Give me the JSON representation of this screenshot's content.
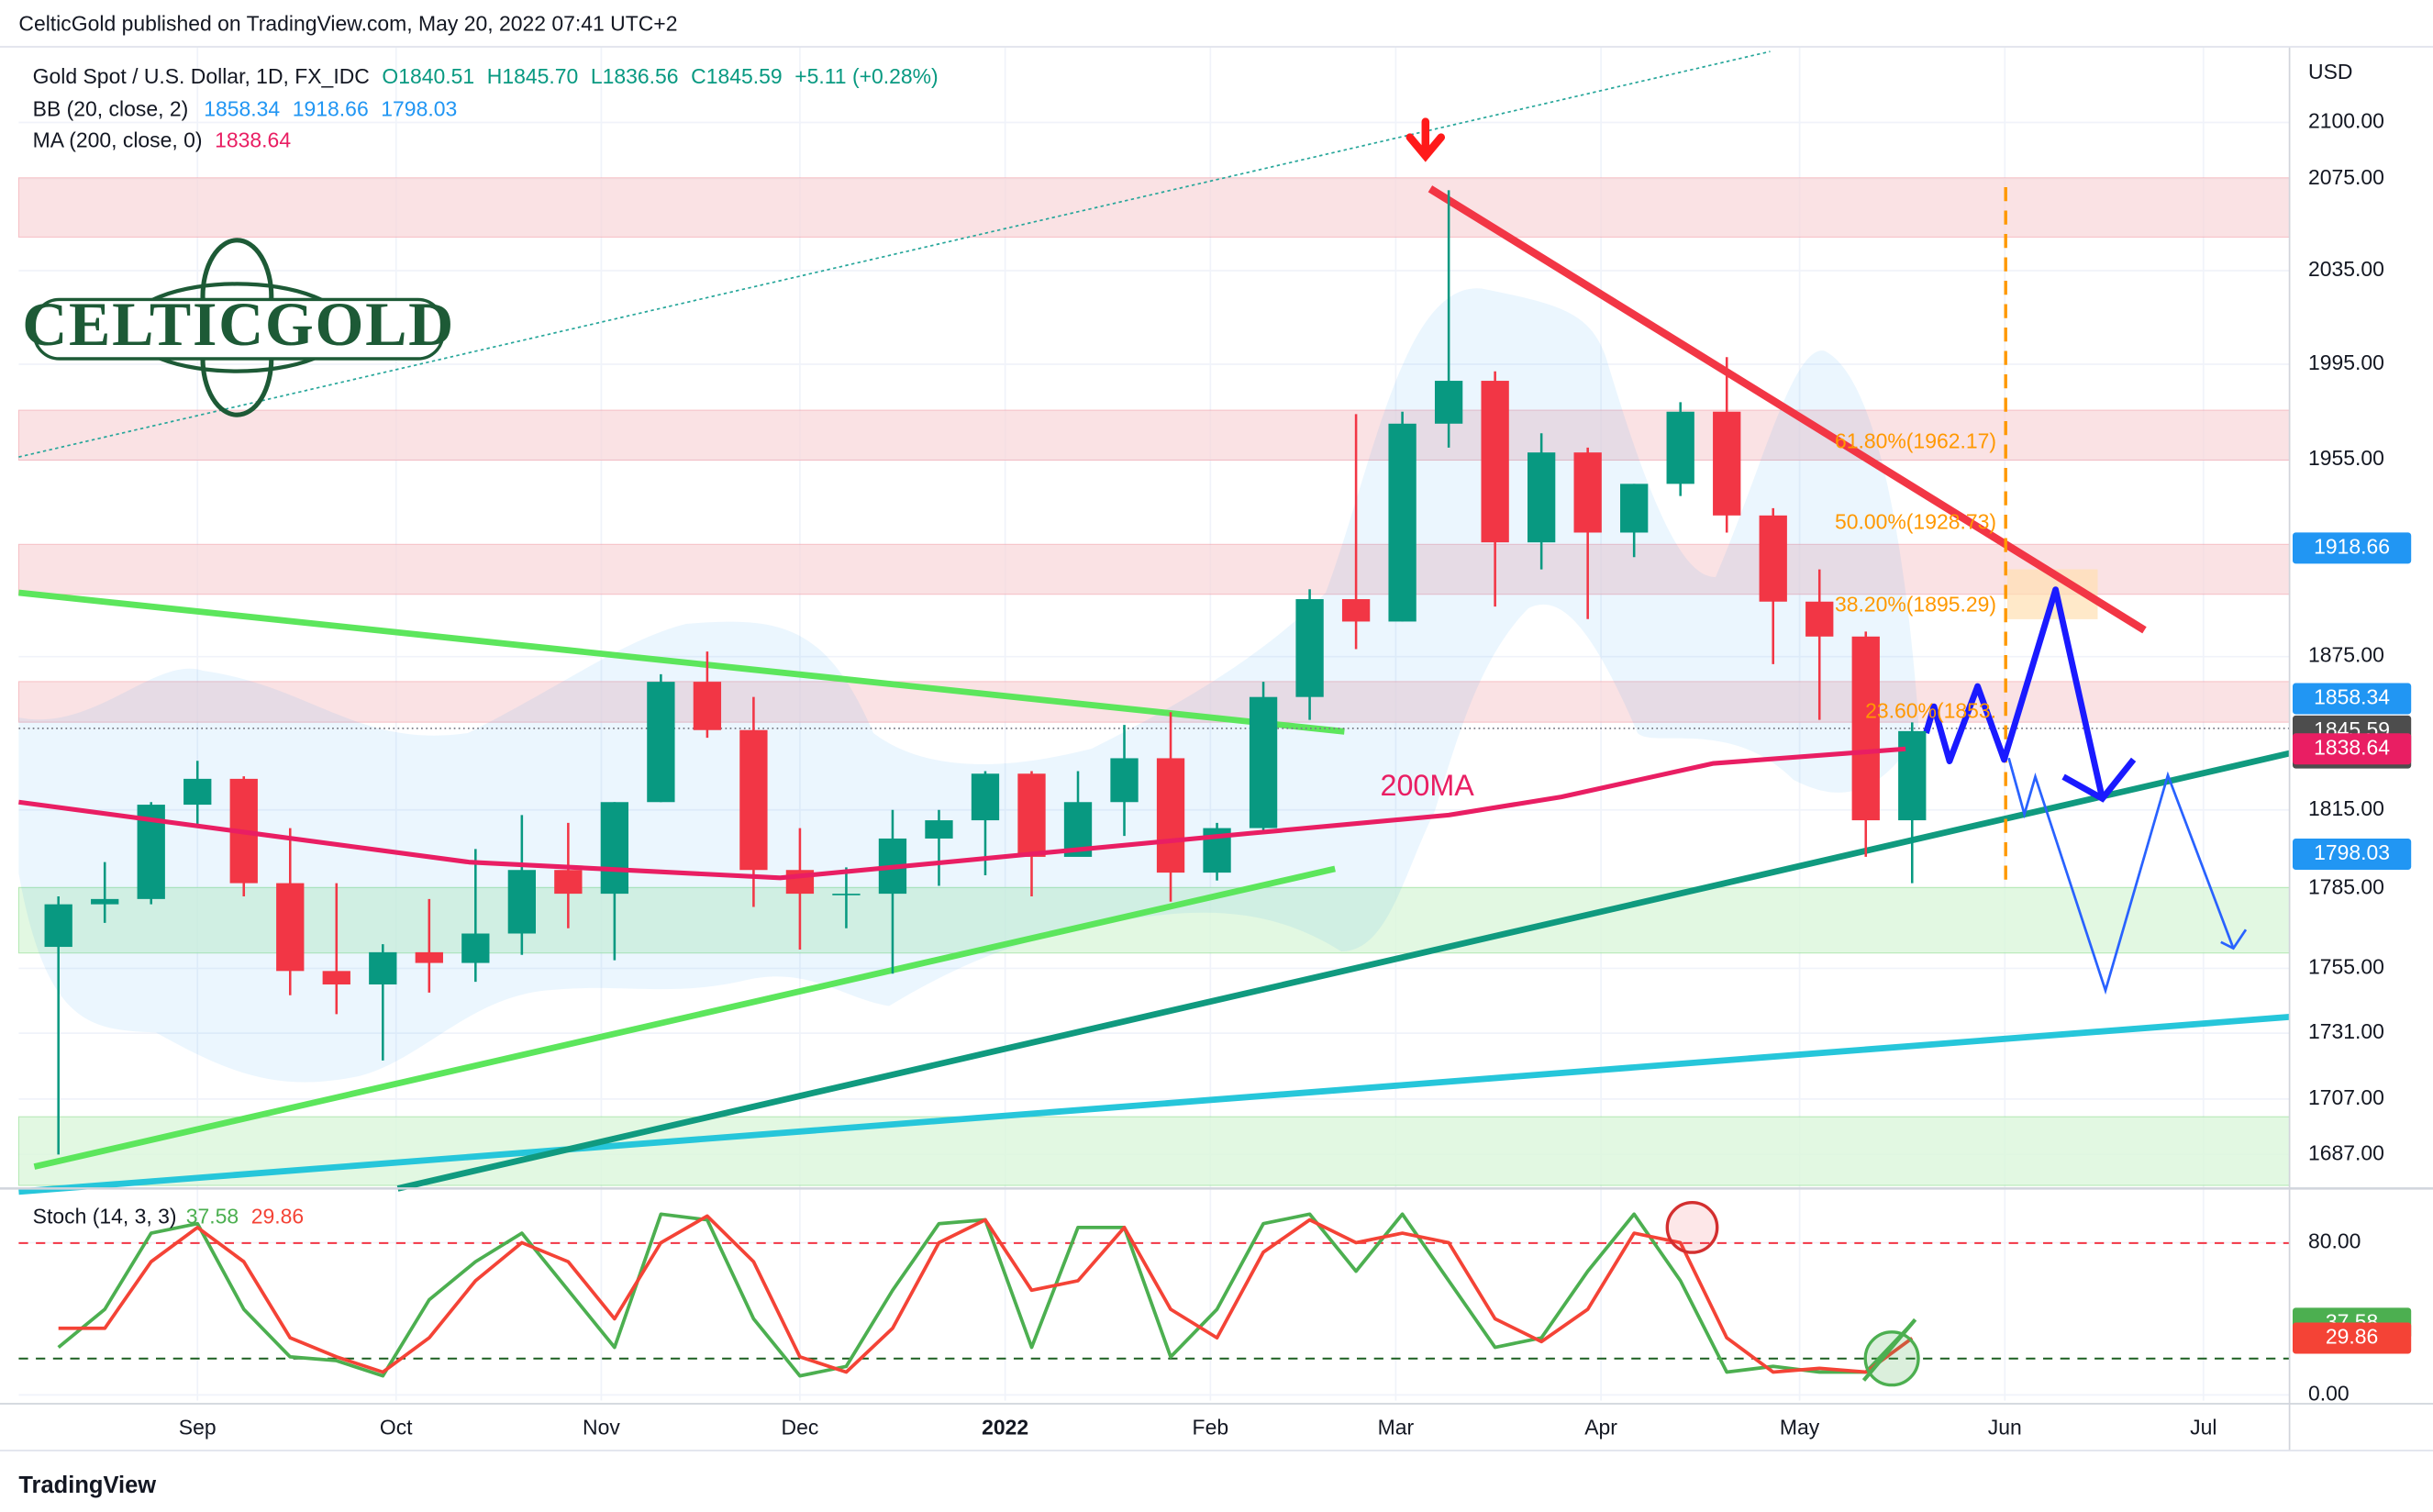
{
  "header": {
    "publisher": "CelticGold published on TradingView.com, May 20, 2022 07:41 UTC+2",
    "footer": "TradingView",
    "logo": "CELTICGOLD"
  },
  "chart_data": [
    {
      "type": "candlestick",
      "title": "Gold Spot / U.S. Dollar, 1D, FX_IDC",
      "legend_values": [
        "O1840.51",
        "H1845.70",
        "L1836.56",
        "C1845.59",
        "+5.11 (+0.28%)"
      ],
      "indicators": [
        {
          "label": "BB (20, close, 2)",
          "values": [
            "1858.34",
            "1918.66",
            "1798.03"
          ],
          "color": "#2196f3"
        },
        {
          "label": "MA (200, close, 0)",
          "values": [
            "1838.64"
          ],
          "color": "#e91e63"
        }
      ],
      "y_label": "USD",
      "log_scale": true,
      "grid": true,
      "up_color": "#089981",
      "down_color": "#f23645",
      "x": [
        -21,
        -14,
        -7,
        0,
        7,
        14,
        21,
        28,
        35,
        42,
        49,
        56,
        63,
        70,
        77,
        84,
        91,
        98,
        105,
        112,
        119,
        126,
        133,
        140,
        147,
        154,
        161,
        168,
        175,
        182,
        189,
        196,
        203,
        210,
        217,
        224,
        231,
        238,
        245,
        252,
        259
      ],
      "open": [
        1763,
        1779,
        1781,
        1817,
        1827,
        1787,
        1754,
        1749,
        1761,
        1757,
        1768,
        1792,
        1783,
        1818,
        1865,
        1846,
        1792,
        1783,
        1783,
        1804,
        1811,
        1829,
        1797,
        1818,
        1835,
        1791,
        1808,
        1859,
        1898,
        1889,
        1970,
        1988,
        1921,
        1958,
        1925,
        1945,
        1975,
        1932,
        1897,
        1883,
        1811
      ],
      "high": [
        1782,
        1795,
        1818,
        1834,
        1828,
        1808,
        1787,
        1764,
        1781,
        1800,
        1813,
        1810,
        1818,
        1868,
        1877,
        1859,
        1808,
        1793,
        1815,
        1815,
        1830,
        1830,
        1830,
        1848,
        1853,
        1810,
        1865,
        1902,
        1974,
        1975,
        2070,
        1992,
        1966,
        1960,
        1945,
        1979,
        1998,
        1935,
        1910,
        1885,
        1849
      ],
      "low": [
        1687,
        1772,
        1779,
        1809,
        1782,
        1745,
        1738,
        1721,
        1746,
        1750,
        1760,
        1770,
        1758,
        1818,
        1843,
        1778,
        1762,
        1770,
        1753,
        1786,
        1790,
        1782,
        1800,
        1805,
        1780,
        1788,
        1807,
        1850,
        1878,
        1889,
        1960,
        1895,
        1910,
        1890,
        1915,
        1940,
        1925,
        1872,
        1850,
        1797,
        1787
      ],
      "close": [
        1779,
        1781,
        1817,
        1827,
        1787,
        1754,
        1749,
        1761,
        1757,
        1768,
        1792,
        1783,
        1818,
        1865,
        1846,
        1792,
        1783,
        1783,
        1804,
        1811,
        1829,
        1797,
        1818,
        1835,
        1791,
        1808,
        1859,
        1898,
        1889,
        1970,
        1988,
        1921,
        1958,
        1925,
        1945,
        1975,
        1932,
        1897,
        1883,
        1811,
        1845.59
      ],
      "series": [
        {
          "name": "200MA",
          "color": "#e91e63",
          "x": [
            -27,
            41,
            88,
            159,
            189,
            206,
            229,
            258
          ],
          "values": [
            1818,
            1795,
            1789,
            1806,
            1813,
            1820,
            1833,
            1838.64
          ]
        }
      ],
      "xlim": [
        -27,
        316
      ],
      "xticks": [
        {
          "value": 0,
          "label": "Sep"
        },
        {
          "value": 30,
          "label": "Oct"
        },
        {
          "value": 61,
          "label": "Nov"
        },
        {
          "value": 91,
          "label": "Dec"
        },
        {
          "value": 122,
          "label": "2022"
        },
        {
          "value": 153,
          "label": "Feb"
        },
        {
          "value": 181,
          "label": "Mar"
        },
        {
          "value": 212,
          "label": "Apr"
        },
        {
          "value": 242,
          "label": "May"
        },
        {
          "value": 273,
          "label": "Jun"
        },
        {
          "value": 303,
          "label": "Jul"
        }
      ],
      "ylim": [
        1676,
        2134
      ],
      "yticks": [
        {
          "value": 2100,
          "label": "2100.00"
        },
        {
          "value": 2075,
          "label": "2075.00"
        },
        {
          "value": 2035,
          "label": "2035.00"
        },
        {
          "value": 1995,
          "label": "1995.00"
        },
        {
          "value": 1955,
          "label": "1955.00"
        },
        {
          "value": 1875,
          "label": "1875.00"
        },
        {
          "value": 1815,
          "label": "1815.00"
        },
        {
          "value": 1785,
          "label": "1785.00"
        },
        {
          "value": 1755,
          "label": "1755.00"
        },
        {
          "value": 1731,
          "label": "1731.00"
        },
        {
          "value": 1707,
          "label": "1707.00"
        },
        {
          "value": 1687,
          "label": "1687.00"
        }
      ],
      "price_labels": [
        {
          "value": 1918.66,
          "label": "1918.66",
          "color": "#2196f3"
        },
        {
          "value": 1858.34,
          "label": "1858.34",
          "color": "#2196f3"
        },
        {
          "value": 1845.59,
          "label": "1845.59",
          "sublabel": "16:18:10",
          "color": "#4d4d4d"
        },
        {
          "value": 1838.64,
          "label": "1838.64",
          "color": "#e91e63"
        },
        {
          "value": 1798.03,
          "label": "1798.03",
          "color": "#2196f3"
        }
      ],
      "fib_levels": [
        {
          "value": 1962.17,
          "label": "61.80%(1962.17)"
        },
        {
          "value": 1928.73,
          "label": "50.00%(1928.73)"
        },
        {
          "value": 1895.29,
          "label": "38.20%(1895.29)"
        },
        {
          "value": 1853,
          "label": "23.60%(1853."
        }
      ],
      "fib_color": "#ff9800"
    },
    {
      "type": "line",
      "title": "Stoch (14, 3, 3)",
      "legend_values": [
        "37.58",
        "29.86"
      ],
      "x": [
        -21,
        -14,
        -7,
        0,
        7,
        14,
        21,
        28,
        35,
        42,
        49,
        56,
        63,
        70,
        77,
        84,
        91,
        98,
        105,
        112,
        119,
        126,
        133,
        140,
        147,
        154,
        161,
        168,
        175,
        182,
        189,
        196,
        203,
        210,
        217,
        224,
        231,
        238,
        245,
        252,
        259
      ],
      "series": [
        {
          "color": "#4caf50",
          "values": [
            25,
            45,
            85,
            90,
            45,
            20,
            18,
            10,
            50,
            70,
            85,
            55,
            25,
            95,
            92,
            40,
            10,
            15,
            55,
            90,
            92,
            25,
            88,
            88,
            20,
            45,
            90,
            95,
            65,
            95,
            60,
            25,
            30,
            65,
            95,
            60,
            12,
            15,
            12,
            12,
            37.58
          ]
        },
        {
          "color": "#f44336",
          "values": [
            35,
            35,
            70,
            88,
            70,
            30,
            20,
            12,
            30,
            60,
            80,
            70,
            40,
            80,
            94,
            70,
            20,
            12,
            35,
            80,
            92,
            55,
            60,
            88,
            45,
            30,
            75,
            92,
            80,
            85,
            80,
            40,
            28,
            45,
            85,
            80,
            30,
            12,
            14,
            12,
            29.86
          ]
        }
      ],
      "xlim": [
        -27,
        316
      ],
      "ylim": [
        -3,
        106
      ],
      "yticks": [
        {
          "value": 80,
          "label": "80.00"
        },
        {
          "value": 0,
          "label": "0.00"
        }
      ],
      "price_labels": [
        {
          "value": 37.58,
          "label": "37.58",
          "color": "#4caf50"
        },
        {
          "value": 29.86,
          "label": "29.86",
          "color": "#f44336"
        }
      ]
    }
  ]
}
